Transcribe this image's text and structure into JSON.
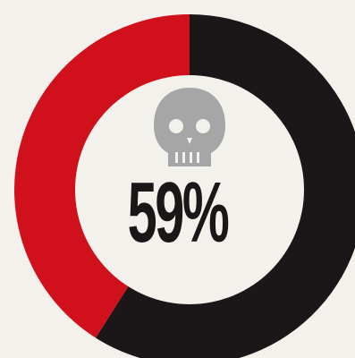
{
  "chart_data": {
    "type": "pie",
    "style": "donut",
    "center_label": "59%",
    "center_icon": "skull-icon",
    "slices": [
      {
        "value": 59,
        "color": "#1b1617"
      },
      {
        "value": 41,
        "color": "#d0111c"
      }
    ]
  },
  "colors": {
    "background": "#f4f1ec",
    "inner": "#f3f1ec",
    "icon": "#a6a6a6"
  }
}
